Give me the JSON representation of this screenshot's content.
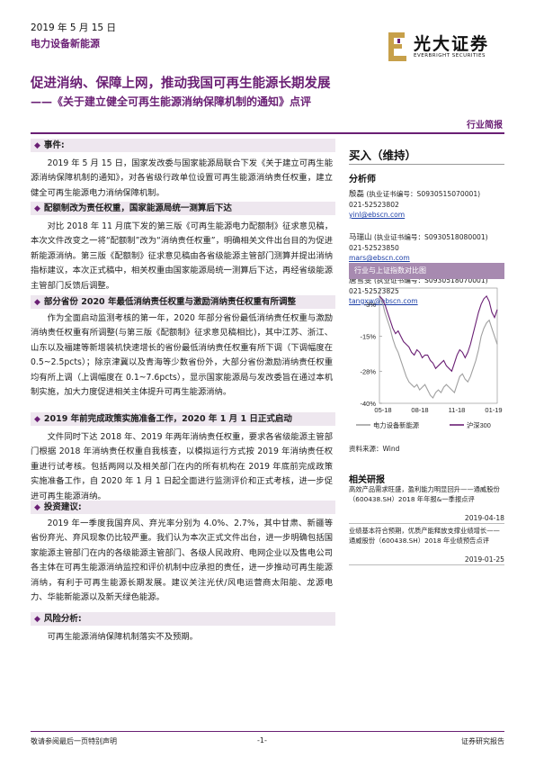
{
  "header": {
    "date": "2019 年 5 月 15 日",
    "category": "电力设备新能源",
    "logo_cn": "光大证券",
    "logo_en": "EVERBRIGHT SECURITIES",
    "brand_color": "#6a1f74",
    "logo_gold": "#c7a04a"
  },
  "title": {
    "main": "促进消纳、保障上网，推动我国可再生能源长期发展",
    "sub": "——《关于建立健全可再生能源消纳保障机制的通知》点评",
    "doc_type": "行业简报"
  },
  "sections": [
    {
      "heading": "事件:",
      "paragraphs": [
        "2019 年 5 月 15 日，国家发改委与国家能源局联合下发《关于建立可再生能源消纳保障机制的通知》，对各省级行政单位设置可再生能源消纳责任权重，建立健全可再生能源电力消纳保障机制。"
      ]
    },
    {
      "heading": "配额制改为责任权重，国家能源局统一测算后下达",
      "paragraphs": [
        "对比 2018 年 11 月底下发的第三版《可再生能源电力配额制》征求意见稿，本次文件改变之一将“配额制”改为“消纳责任权重”，明确相关文件出台目的为促进新能源消纳。第三版《配额制》征求意见稿由各省级能源主管部门测算并提出消纳指标建议，本次正式稿中，相关权重由国家能源局统一测算后下达，再经省级能源主管部门反馈后调整。"
      ]
    },
    {
      "heading": "部分省份 2020 年最低消纳责任权重与激励消纳责任权重有所调整",
      "paragraphs": [
        "作为全面启动监测考核的第一年，2020 年部分省份最低消纳责任权重与激励消纳责任权重有所调整(与第三版《配额制》征求意见稿相比)，其中江苏、浙江、山东以及福建等新增装机快速增长的省份最低消纳责任权重有所下调（下调幅度在 0.5~2.5pcts）；除京津冀以及青海等少数省份外，大部分省份激励消纳责任权重均有所上调（上调幅度在 0.1~7.6pcts），显示国家能源局与发改委旨在通过本机制实施，加大力度促进相关主体提升可再生能源消纳。"
      ]
    },
    {
      "heading": "2019 年前完成政策实施准备工作，2020 年 1 月 1 日正式启动",
      "paragraphs": [
        "文件同时下达 2018 年、2019 年两年消纳责任权重，要求各省级能源主管部门根据 2018 年消纳责任权重自我核查，以模拟运行方式按 2019 年消纳责任权重进行试考核。包括两网以及相关部门在内的所有机构在 2019 年底前完成政策实施准备工作，自 2020 年 1 月 1 日起全面进行监测评价和正式考核，进一步促进可再生能源消纳。"
      ]
    },
    {
      "heading": "投资建议:",
      "paragraphs": [
        "2019 年一季度我国弃风、弃光率分别为 4.0%、2.7%，其中甘肃、新疆等省份弃光、弃风现象仍比较严重。我们认为本次正式文件出台，进一步明确包括国家能源主管部门在内的各级能源主管部门、各级人民政府、电网企业以及售电公司各主体在可再生能源消纳监控和评价机制中应承担的责任，进一步推动可再生能源消纳，有利于可再生能源长期发展。建议关注光伏/风电运营商太阳能、龙源电力、华能新能源以及新天绿色能源。"
      ]
    },
    {
      "heading": "风险分析:",
      "paragraphs": [
        "可再生能源消纳保障机制落实不及预期。"
      ]
    }
  ],
  "rating": "买入（维持）",
  "analysts_heading": "分析师",
  "analysts": [
    {
      "name": "殷磊",
      "cert": "(执业证书编号：S0930515070001)",
      "phone": "021-52523802",
      "email": "yinl@ebscn.com"
    },
    {
      "name": "马瑞山",
      "cert": "(执业证书编号：S0930518080001)",
      "phone": "021-52523850",
      "email": "mars@ebscn.com"
    },
    {
      "name": "唐雪雯",
      "cert": "(执业证书编号：S0930518070001)",
      "phone": "021-52523825",
      "email": "tangxw@ebscn.com"
    }
  ],
  "chart_data": {
    "type": "line",
    "title": "行业与上证指数对比图",
    "x_ticks": [
      "05-18",
      "08-18",
      "11-18",
      "01-19"
    ],
    "y_ticks": [
      "-3%",
      "-15%",
      "-28%",
      "-40%"
    ],
    "ylim": [
      -40,
      3
    ],
    "series": [
      {
        "name": "电力设备新能源",
        "color": "#a0a0a0",
        "values": [
          0,
          -2,
          -6,
          -9,
          -12,
          -16,
          -19,
          -21,
          -24,
          -27,
          -30,
          -32,
          -33,
          -34,
          -33,
          -35,
          -34,
          -33,
          -35,
          -37,
          -38,
          -36,
          -35,
          -36,
          -34,
          -33,
          -34,
          -35,
          -36,
          -33,
          -30,
          -29,
          -31,
          -32,
          -30,
          -27,
          -24,
          -20,
          -15,
          -12,
          -10,
          -9,
          -12,
          -15,
          -18
        ]
      },
      {
        "name": "沪深300",
        "color": "#6a1f74",
        "values": [
          0,
          -1,
          -3,
          -6,
          -9,
          -12,
          -14,
          -13,
          -15,
          -17,
          -18,
          -19,
          -21,
          -22,
          -20,
          -21,
          -23,
          -22,
          -22,
          -24,
          -25,
          -27,
          -26,
          -25,
          -24,
          -26,
          -27,
          -28,
          -25,
          -22,
          -20,
          -21,
          -23,
          -21,
          -18,
          -14,
          -10,
          -6,
          -3,
          -1,
          0,
          -2,
          -6,
          -8,
          -5
        ]
      }
    ],
    "source": "资料来源：Wind"
  },
  "related_heading": "相关研报",
  "related": [
    {
      "text": "高效产品需求旺盛，盈利能力明显回升——通威股份（600438.SH）2018 年年报&一季报点评",
      "date": "2019-04-18"
    },
    {
      "text": "业绩基本符合预期，优质产能释放支撑业绩增长——通威股份（600438.SH）2018 年业绩预告点评",
      "date": "2019-01-25"
    }
  ],
  "footer": {
    "left": "敬请参阅最后一页特别声明",
    "center": "-1-",
    "right": "证券研究报告"
  }
}
